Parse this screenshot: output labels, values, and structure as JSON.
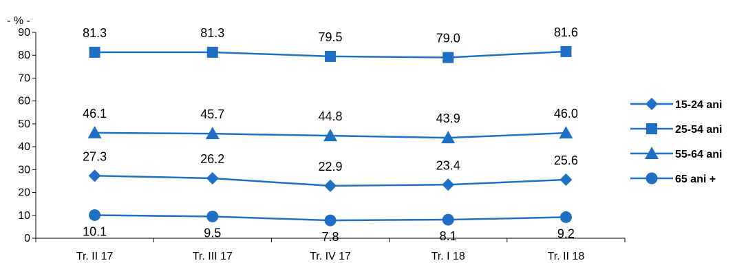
{
  "chart_data": {
    "type": "line",
    "unit_label": "- % -",
    "categories": [
      "Tr. II 17",
      "Tr. III 17",
      "Tr. IV 17",
      "Tr. I 18",
      "Tr. II 18"
    ],
    "ylim": [
      0,
      90
    ],
    "yticks": [
      0,
      10,
      20,
      30,
      40,
      50,
      60,
      70,
      80,
      90
    ],
    "grid": false,
    "legend_position": "right",
    "series": [
      {
        "name": "15-24 ani",
        "marker": "diamond",
        "values": [
          27.3,
          26.2,
          22.9,
          23.4,
          25.6
        ],
        "labels": [
          "27.3",
          "26.2",
          "22.9",
          "23.4",
          "25.6"
        ],
        "label_side": "above"
      },
      {
        "name": "25-54 ani",
        "marker": "square",
        "values": [
          81.3,
          81.3,
          79.5,
          79.0,
          81.6
        ],
        "labels": [
          "81.3",
          "81.3",
          "79.5",
          "79.0",
          "81.6"
        ],
        "label_side": "above"
      },
      {
        "name": "55-64 ani",
        "marker": "triangle",
        "values": [
          46.1,
          45.7,
          44.8,
          43.9,
          46.0
        ],
        "labels": [
          "46.1",
          "45.7",
          "44.8",
          "43.9",
          "46.0"
        ],
        "label_side": "above"
      },
      {
        "name": "65 ani +",
        "marker": "circle",
        "values": [
          10.1,
          9.5,
          7.8,
          8.1,
          9.2
        ],
        "labels": [
          "10.1",
          "9.5",
          "7.8",
          "8.1",
          "9.2"
        ],
        "label_side": "below"
      }
    ],
    "colors": {
      "line": "#1f6fc5",
      "axis": "#000000"
    }
  }
}
